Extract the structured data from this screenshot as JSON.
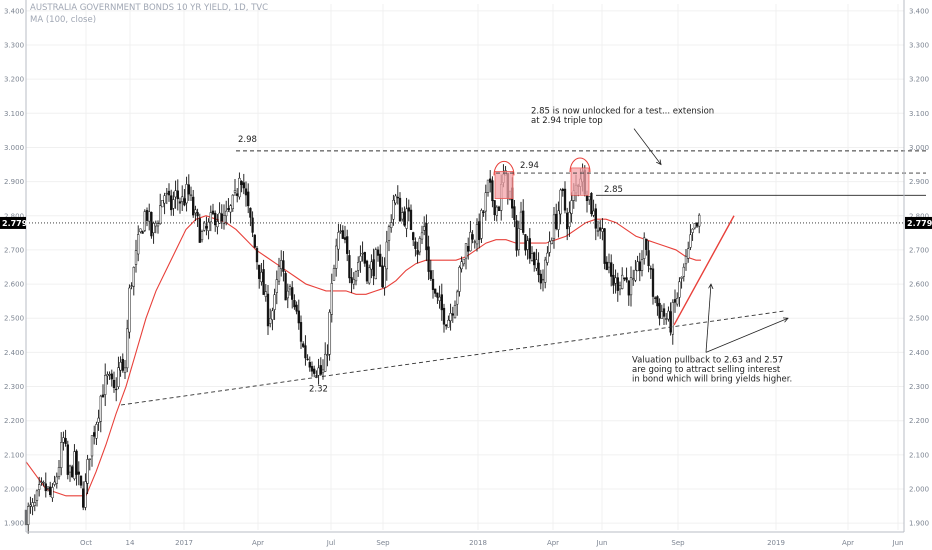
{
  "header": {
    "title": "AUSTRALIA GOVERNMENT BONDS 10 YR YIELD, 1D, TVC",
    "indicator": "MA (100, close)"
  },
  "colors": {
    "background": "#ffffff",
    "candle": "#111111",
    "ma_line": "#e8403a",
    "highlight_fill": "#f4a3a8",
    "highlight_stroke": "#e8403a",
    "grid": "#f0f0f0",
    "axis_text": "#7d8592",
    "price_tag_bg": "#000000"
  },
  "last_price": "2.779",
  "chart_data": {
    "type": "candlestick",
    "symbol": "AUSTRALIA GOVERNMENT BONDS 10 YR YIELD",
    "interval": "1D",
    "ylim": [
      1.88,
      3.42
    ],
    "y_ticks": [
      "1.900",
      "2.000",
      "2.100",
      "2.200",
      "2.300",
      "2.400",
      "2.500",
      "2.600",
      "2.700",
      "2.800",
      "2.900",
      "3.000",
      "3.100",
      "3.200",
      "3.300",
      "3.400"
    ],
    "x_ticks": [
      "Oct",
      "14",
      "2017",
      "Apr",
      "Jul",
      "Sep",
      "2018",
      "Apr",
      "Jun",
      "Sep",
      "2019",
      "Apr",
      "Jun"
    ],
    "x_range": [
      0,
      880
    ],
    "x_tick_positions": [
      60,
      104,
      158,
      232,
      305,
      357,
      452,
      527,
      576,
      652,
      750,
      822,
      872
    ],
    "close_path": [
      [
        0,
        1.93
      ],
      [
        8,
        1.94
      ],
      [
        14,
        1.99
      ],
      [
        20,
        2.0
      ],
      [
        26,
        1.97
      ],
      [
        32,
        2.06
      ],
      [
        38,
        2.15
      ],
      [
        42,
        2.03
      ],
      [
        48,
        2.08
      ],
      [
        54,
        2.0
      ],
      [
        58,
        1.97
      ],
      [
        64,
        2.12
      ],
      [
        70,
        2.2
      ],
      [
        76,
        2.29
      ],
      [
        82,
        2.32
      ],
      [
        88,
        2.28
      ],
      [
        94,
        2.37
      ],
      [
        98,
        2.31
      ],
      [
        104,
        2.6
      ],
      [
        108,
        2.64
      ],
      [
        112,
        2.71
      ],
      [
        116,
        2.77
      ],
      [
        120,
        2.82
      ],
      [
        126,
        2.74
      ],
      [
        132,
        2.8
      ],
      [
        138,
        2.87
      ],
      [
        144,
        2.82
      ],
      [
        150,
        2.86
      ],
      [
        156,
        2.84
      ],
      [
        162,
        2.87
      ],
      [
        168,
        2.8
      ],
      [
        176,
        2.74
      ],
      [
        182,
        2.76
      ],
      [
        190,
        2.81
      ],
      [
        196,
        2.77
      ],
      [
        204,
        2.81
      ],
      [
        210,
        2.85
      ],
      [
        214,
        2.95
      ],
      [
        218,
        2.88
      ],
      [
        224,
        2.78
      ],
      [
        230,
        2.69
      ],
      [
        236,
        2.6
      ],
      [
        242,
        2.51
      ],
      [
        248,
        2.53
      ],
      [
        254,
        2.66
      ],
      [
        260,
        2.58
      ],
      [
        266,
        2.56
      ],
      [
        272,
        2.49
      ],
      [
        278,
        2.4
      ],
      [
        284,
        2.38
      ],
      [
        290,
        2.36
      ],
      [
        296,
        2.33
      ],
      [
        300,
        2.37
      ],
      [
        306,
        2.59
      ],
      [
        312,
        2.74
      ],
      [
        318,
        2.72
      ],
      [
        324,
        2.63
      ],
      [
        330,
        2.65
      ],
      [
        336,
        2.7
      ],
      [
        342,
        2.63
      ],
      [
        350,
        2.67
      ],
      [
        356,
        2.61
      ],
      [
        362,
        2.74
      ],
      [
        368,
        2.86
      ],
      [
        374,
        2.81
      ],
      [
        380,
        2.8
      ],
      [
        386,
        2.77
      ],
      [
        392,
        2.7
      ],
      [
        398,
        2.77
      ],
      [
        404,
        2.62
      ],
      [
        410,
        2.55
      ],
      [
        416,
        2.52
      ],
      [
        422,
        2.5
      ],
      [
        428,
        2.55
      ],
      [
        434,
        2.63
      ],
      [
        440,
        2.71
      ],
      [
        446,
        2.75
      ],
      [
        452,
        2.74
      ],
      [
        458,
        2.82
      ],
      [
        462,
        2.88
      ],
      [
        468,
        2.84
      ],
      [
        472,
        2.82
      ],
      [
        478,
        2.92
      ],
      [
        484,
        2.86
      ],
      [
        490,
        2.72
      ],
      [
        496,
        2.81
      ],
      [
        500,
        2.72
      ],
      [
        506,
        2.7
      ],
      [
        512,
        2.62
      ],
      [
        518,
        2.62
      ],
      [
        524,
        2.74
      ],
      [
        530,
        2.79
      ],
      [
        536,
        2.86
      ],
      [
        542,
        2.78
      ],
      [
        548,
        2.86
      ],
      [
        554,
        2.93
      ],
      [
        560,
        2.89
      ],
      [
        564,
        2.84
      ],
      [
        570,
        2.78
      ],
      [
        576,
        2.76
      ],
      [
        580,
        2.66
      ],
      [
        584,
        2.62
      ],
      [
        590,
        2.6
      ],
      [
        596,
        2.63
      ],
      [
        602,
        2.6
      ],
      [
        608,
        2.59
      ],
      [
        614,
        2.66
      ],
      [
        620,
        2.72
      ],
      [
        626,
        2.59
      ],
      [
        632,
        2.53
      ],
      [
        638,
        2.51
      ],
      [
        644,
        2.48
      ],
      [
        650,
        2.55
      ],
      [
        656,
        2.62
      ],
      [
        662,
        2.68
      ],
      [
        666,
        2.74
      ],
      [
        670,
        2.76
      ],
      [
        674,
        2.78
      ]
    ],
    "moving_average": {
      "name": "MA (100, close)",
      "points": [
        [
          0,
          2.08
        ],
        [
          20,
          2.0
        ],
        [
          40,
          1.98
        ],
        [
          60,
          1.98
        ],
        [
          70,
          2.05
        ],
        [
          80,
          2.13
        ],
        [
          90,
          2.22
        ],
        [
          100,
          2.3
        ],
        [
          110,
          2.4
        ],
        [
          120,
          2.5
        ],
        [
          130,
          2.58
        ],
        [
          140,
          2.64
        ],
        [
          150,
          2.7
        ],
        [
          160,
          2.76
        ],
        [
          170,
          2.79
        ],
        [
          180,
          2.8
        ],
        [
          190,
          2.79
        ],
        [
          200,
          2.78
        ],
        [
          210,
          2.76
        ],
        [
          220,
          2.73
        ],
        [
          230,
          2.7
        ],
        [
          240,
          2.68
        ],
        [
          250,
          2.66
        ],
        [
          260,
          2.64
        ],
        [
          270,
          2.62
        ],
        [
          280,
          2.6
        ],
        [
          290,
          2.59
        ],
        [
          300,
          2.58
        ],
        [
          310,
          2.58
        ],
        [
          320,
          2.58
        ],
        [
          330,
          2.57
        ],
        [
          340,
          2.57
        ],
        [
          350,
          2.58
        ],
        [
          360,
          2.59
        ],
        [
          370,
          2.61
        ],
        [
          380,
          2.64
        ],
        [
          390,
          2.66
        ],
        [
          400,
          2.67
        ],
        [
          410,
          2.67
        ],
        [
          420,
          2.67
        ],
        [
          430,
          2.67
        ],
        [
          440,
          2.68
        ],
        [
          450,
          2.7
        ],
        [
          460,
          2.72
        ],
        [
          470,
          2.73
        ],
        [
          480,
          2.73
        ],
        [
          490,
          2.72
        ],
        [
          500,
          2.72
        ],
        [
          510,
          2.72
        ],
        [
          520,
          2.72
        ],
        [
          530,
          2.73
        ],
        [
          540,
          2.74
        ],
        [
          550,
          2.76
        ],
        [
          560,
          2.78
        ],
        [
          570,
          2.79
        ],
        [
          580,
          2.79
        ],
        [
          590,
          2.78
        ],
        [
          600,
          2.76
        ],
        [
          610,
          2.74
        ],
        [
          620,
          2.73
        ],
        [
          630,
          2.72
        ],
        [
          640,
          2.71
        ],
        [
          650,
          2.7
        ],
        [
          660,
          2.68
        ],
        [
          670,
          2.67
        ],
        [
          675,
          2.67
        ]
      ]
    },
    "lines": [
      {
        "kind": "dashed",
        "from": [
          95,
          2.246
        ],
        "to": [
          760,
          2.522
        ]
      },
      {
        "kind": "dashed",
        "from": [
          210,
          2.99
        ],
        "to": [
          900,
          2.99
        ]
      },
      {
        "kind": "dashed",
        "from": [
          470,
          2.925
        ],
        "to": [
          900,
          2.925
        ]
      },
      {
        "kind": "solid",
        "from": [
          570,
          2.86
        ],
        "to": [
          900,
          2.86
        ]
      },
      {
        "kind": "dotted",
        "from": [
          0,
          2.779
        ],
        "to": [
          900,
          2.779
        ]
      },
      {
        "kind": "trend-red",
        "from": [
          648,
          2.48
        ],
        "to": [
          708,
          2.8
        ]
      }
    ],
    "highlights": [
      {
        "x": 478,
        "y_low": 2.85,
        "y_high": 2.93
      },
      {
        "x": 554,
        "y_low": 2.86,
        "y_high": 2.94
      }
    ],
    "labels": [
      {
        "text": "2.98",
        "at": [
          212,
          3.016
        ]
      },
      {
        "text": "2.94",
        "at": [
          494,
          2.94
        ]
      },
      {
        "text": "2.85",
        "at": [
          578,
          2.87
        ]
      },
      {
        "text": "2.32",
        "at": [
          283,
          2.285
        ]
      }
    ],
    "annotations": [
      {
        "lines": [
          "2.85 is now unlocked for a test... extension",
          "at 2.94 triple top"
        ],
        "at": [
          505,
          3.1
        ]
      },
      {
        "lines": [
          "Valuation pullback to 2.63 and 2.57",
          "are going to attract selling interest",
          "in bond which will bring yields higher."
        ],
        "at": [
          606,
          2.37
        ]
      }
    ]
  }
}
